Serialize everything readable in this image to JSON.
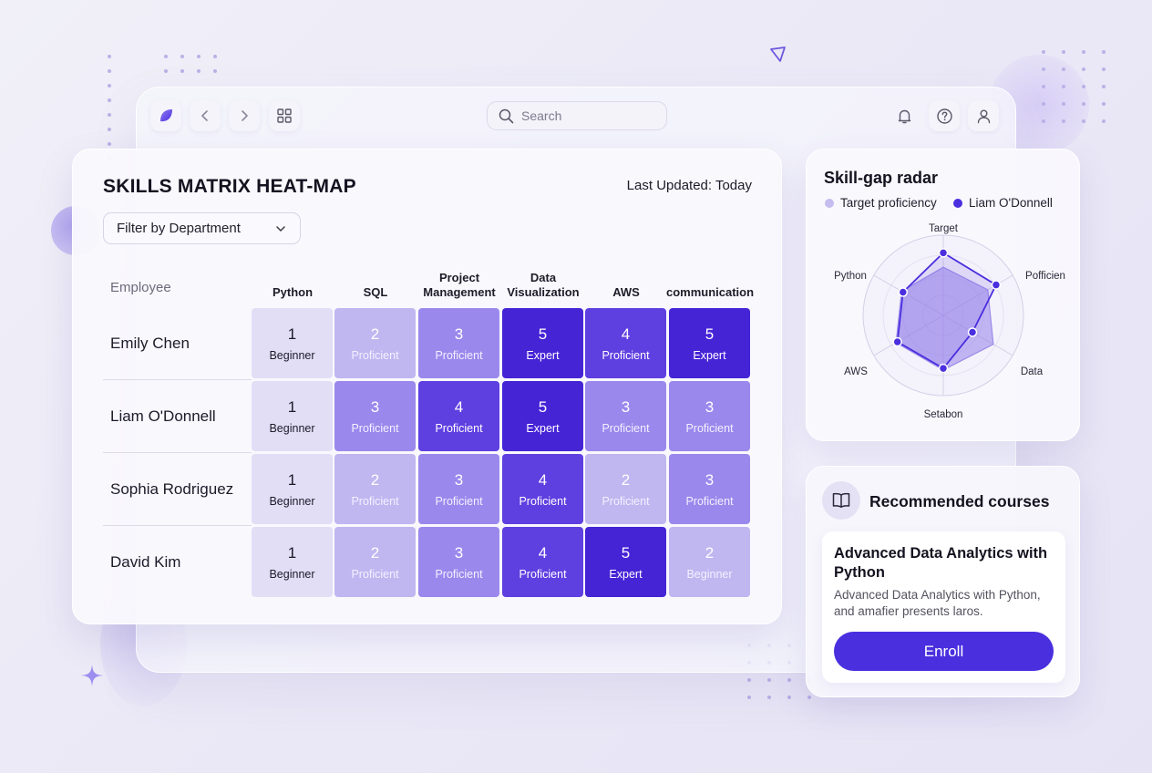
{
  "toolbar": {
    "search_placeholder": "Search",
    "icons": [
      "app-logo-icon",
      "back-icon",
      "forward-icon",
      "grid-icon",
      "bell-icon",
      "help-icon",
      "user-icon"
    ]
  },
  "matrix": {
    "title": "SKILLS MATRIX HEAT-MAP",
    "last_updated": "Last Updated: Today",
    "filter_label": "Filter by Department",
    "employee_header": "Employee",
    "columns": [
      [
        "Python"
      ],
      [
        "SQL"
      ],
      [
        "Project",
        "Management"
      ],
      [
        "Data",
        "Visualization"
      ],
      [
        "AWS"
      ],
      [
        "communication"
      ]
    ],
    "rows": [
      {
        "name": "Emily Chen",
        "cells": [
          [
            1,
            "Beginner"
          ],
          [
            2,
            "Proficient"
          ],
          [
            3,
            "Proficient"
          ],
          [
            5,
            "Expert"
          ],
          [
            4,
            "Proficient"
          ],
          [
            5,
            "Expert"
          ]
        ]
      },
      {
        "name": "Liam O'Donnell",
        "cells": [
          [
            1,
            "Beginner"
          ],
          [
            3,
            "Proficient"
          ],
          [
            4,
            "Proficient"
          ],
          [
            5,
            "Expert"
          ],
          [
            3,
            "Proficient"
          ],
          [
            3,
            "Proficient"
          ]
        ]
      },
      {
        "name": "Sophia Rodriguez",
        "cells": [
          [
            1,
            "Beginner"
          ],
          [
            2,
            "Proficient"
          ],
          [
            3,
            "Proficient"
          ],
          [
            4,
            "Proficient"
          ],
          [
            2,
            "Proficient"
          ],
          [
            3,
            "Proficient"
          ]
        ]
      },
      {
        "name": "David Kim",
        "cells": [
          [
            1,
            "Beginner"
          ],
          [
            2,
            "Proficient"
          ],
          [
            3,
            "Proficient"
          ],
          [
            4,
            "Proficient"
          ],
          [
            5,
            "Expert"
          ],
          [
            2,
            "Beginner"
          ]
        ]
      }
    ],
    "level_colors": {
      "1": "#e2def6",
      "2": "#c0b6f0",
      "3": "#9a88ec",
      "4": "#5e3fe0",
      "5": "#4524d6"
    }
  },
  "radar": {
    "title": "Skill-gap radar",
    "legend": [
      {
        "label": "Target proficiency",
        "color": "#c5bcf0"
      },
      {
        "label": "Liam O'Donnell",
        "color": "#4a2fdf"
      }
    ],
    "axes": [
      "Target",
      "Pofficien",
      "Data",
      "Setabon",
      "AWS",
      "Python"
    ],
    "target": [
      3.0,
      3.2,
      3.6,
      3.4,
      3.4,
      3.0
    ],
    "person": [
      3.9,
      3.8,
      2.1,
      3.3,
      3.3,
      2.9
    ],
    "max": 5
  },
  "courses": {
    "title": "Recommended courses",
    "course_title": "Advanced Data Analytics with Python",
    "course_desc": "Advanced Data Analytics with Python, and amafier presents laros.",
    "enroll_label": "Enroll"
  }
}
